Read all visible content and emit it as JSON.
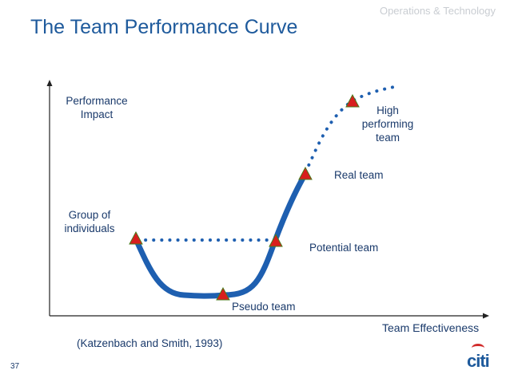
{
  "slide": {
    "title": "The Team Performance Curve",
    "header_tag": "Operations & Technology",
    "page_number": "37",
    "citation": "(Katzenbach and Smith, 1993)",
    "logo_text": "citi"
  },
  "diagram": {
    "y_axis_label_line1": "Performance",
    "y_axis_label_line2": "Impact",
    "x_axis_label": "Team Effectiveness",
    "points": {
      "group_line1": "Group of",
      "group_line2": "individuals",
      "pseudo": "Pseudo team",
      "potential": "Potential team",
      "real": "Real team",
      "high_line1": "High",
      "high_line2": "performing",
      "high_line3": "team"
    },
    "colors": {
      "curve": "#1e5fb0",
      "marker_fill": "#d81e1e",
      "marker_stroke": "#4a7a1a",
      "axis": "#222222"
    }
  }
}
